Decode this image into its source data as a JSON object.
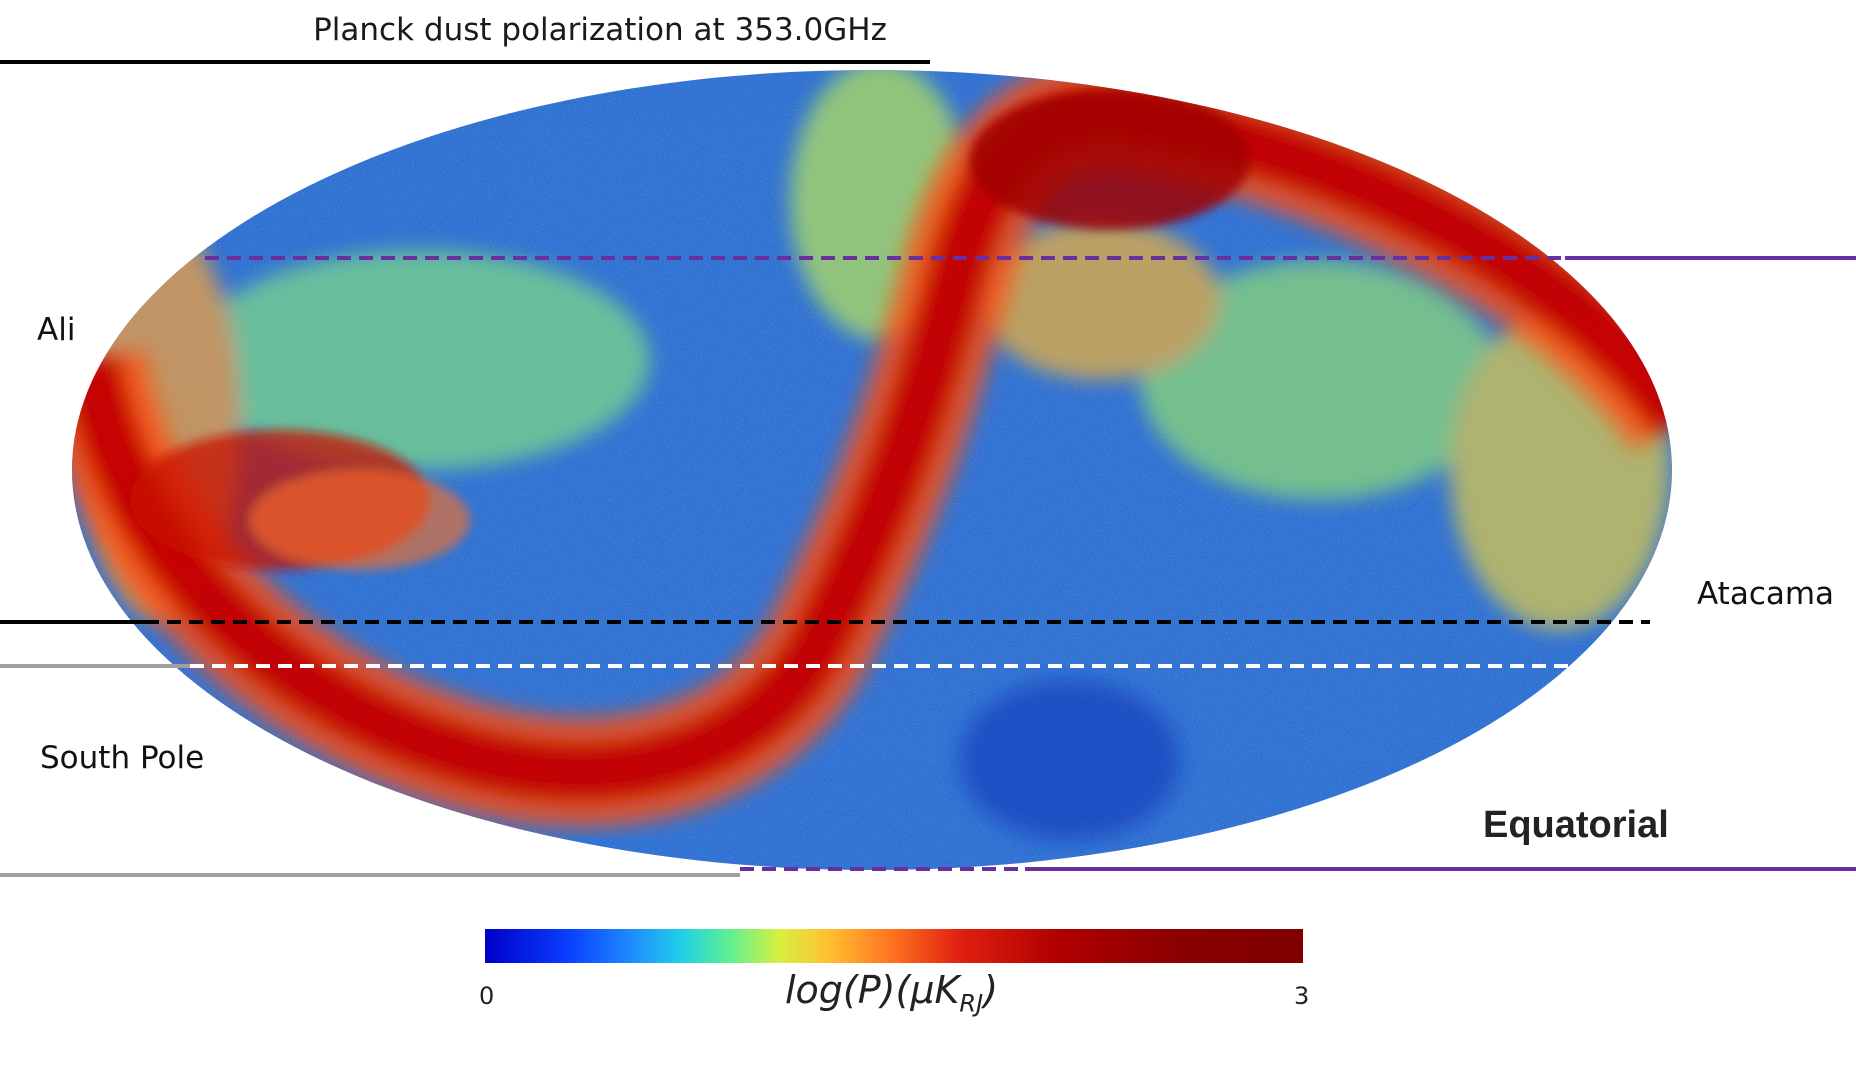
{
  "title": "Planck dust polarization at 353.0GHz",
  "labels": {
    "ali": "Ali",
    "atacama": "Atacama",
    "south_pole": "South Pole",
    "equatorial": "Equatorial"
  },
  "colorbar": {
    "min_label": "0",
    "max_label": "3",
    "quantity": "log(P)(μK",
    "subscript": "RJ",
    "close": ")"
  },
  "colors": {
    "ali_line": "#000000",
    "south_pole_line": "#a0a0a0",
    "equatorial_line": "#6a2f9f",
    "atacama_dash": "#000000",
    "south_pole_dash": "#ffffff"
  },
  "map": {
    "projection": "mollweide",
    "colormap": "jet",
    "value_range": [
      0,
      3
    ]
  }
}
